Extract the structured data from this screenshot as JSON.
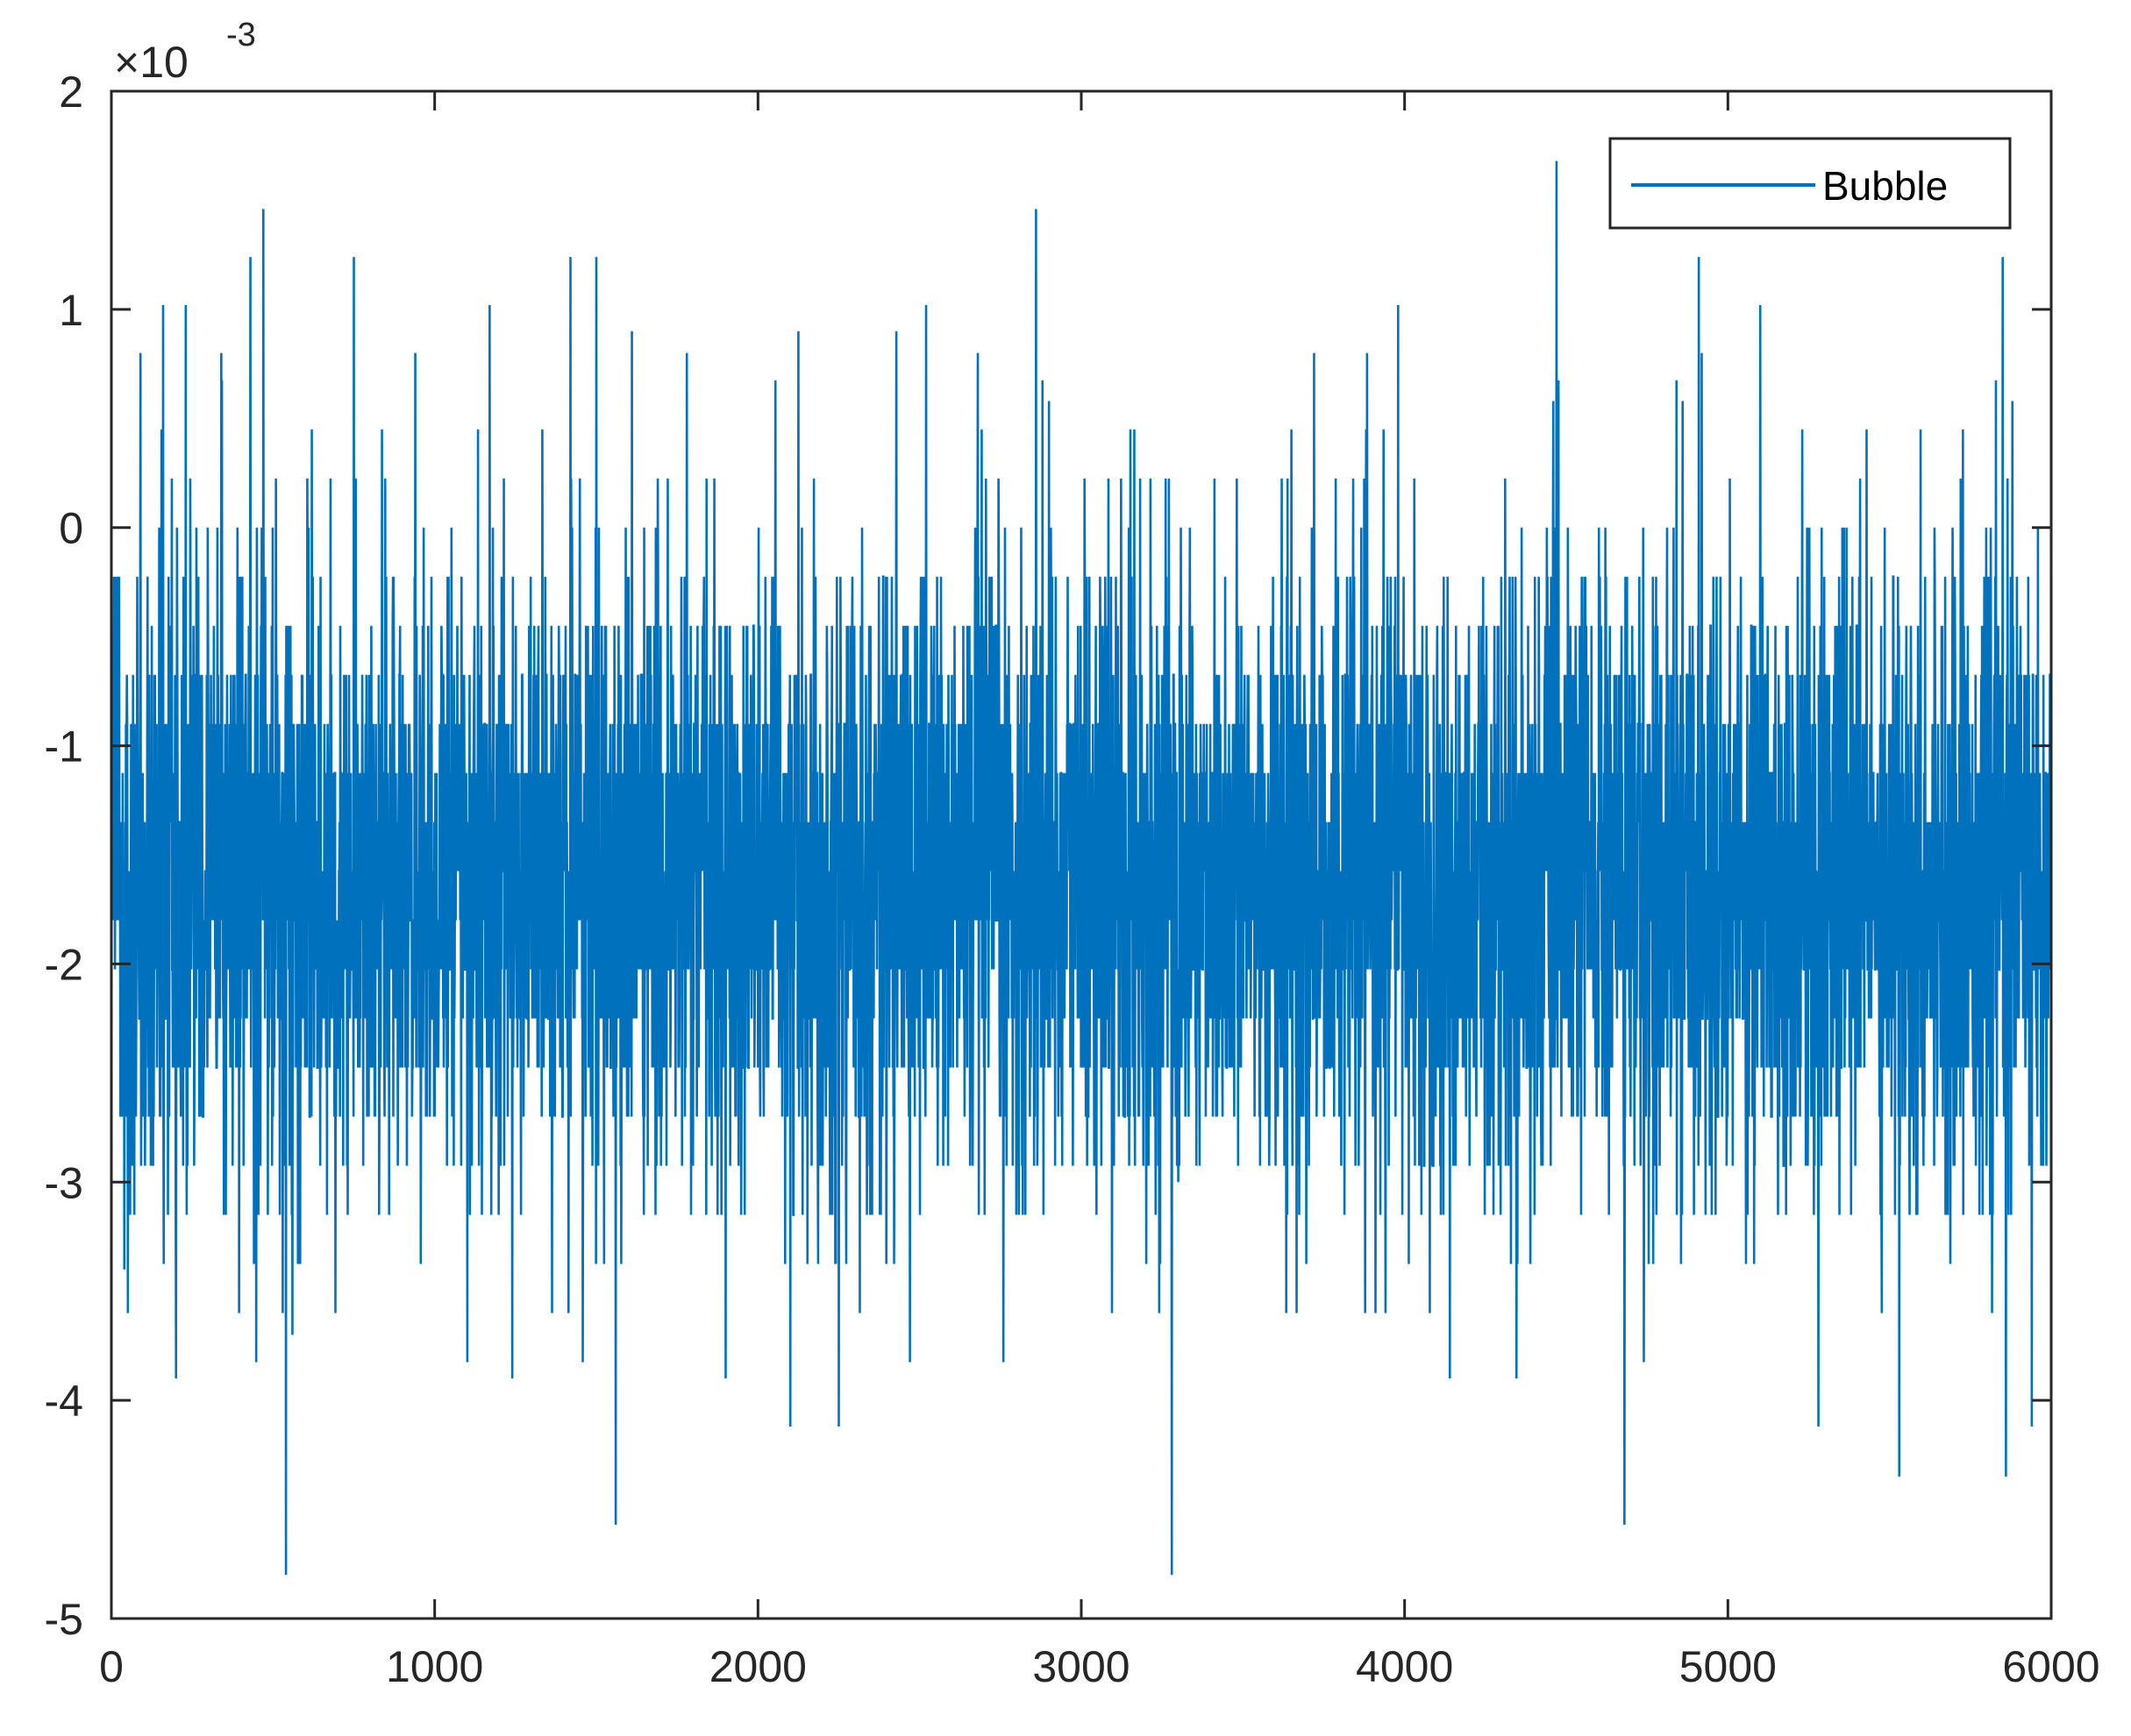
{
  "chart_data": {
    "type": "line",
    "title": "",
    "xlabel": "",
    "ylabel": "",
    "xlim": [
      0,
      6000
    ],
    "ylim": [
      -5,
      2
    ],
    "y_scale_exponent": {
      "prefix": "×10",
      "power": "-3"
    },
    "x_ticks": [
      {
        "value": 0,
        "label": "0"
      },
      {
        "value": 1000,
        "label": "1000"
      },
      {
        "value": 2000,
        "label": "2000"
      },
      {
        "value": 3000,
        "label": "3000"
      },
      {
        "value": 4000,
        "label": "4000"
      },
      {
        "value": 5000,
        "label": "5000"
      },
      {
        "value": 6000,
        "label": "6000"
      }
    ],
    "y_ticks": [
      {
        "value": 2,
        "label": "2"
      },
      {
        "value": 1,
        "label": "1"
      },
      {
        "value": 0,
        "label": "0"
      },
      {
        "value": -1,
        "label": "-1"
      },
      {
        "value": -2,
        "label": "-2"
      },
      {
        "value": -3,
        "label": "-3"
      },
      {
        "value": -4,
        "label": "-4"
      },
      {
        "value": -5,
        "label": "-5"
      }
    ],
    "grid": false,
    "legend": {
      "placement": "top-right"
    },
    "series": [
      {
        "name": "Bubble",
        "color": "#0072BD",
        "n_points": 6000,
        "mean": -1.6,
        "sample_step": 0.225,
        "typical_range": [
          -3.0,
          -0.2
        ],
        "x": [
          0,
          40,
          90,
          160,
          200,
          230,
          340,
          430,
          470,
          540,
          560,
          750,
          940,
          1170,
          1240,
          1420,
          1500,
          1560,
          1780,
          2100,
          2250,
          2520,
          2680,
          2860,
          2900,
          3280,
          3300,
          3720,
          3980,
          4140,
          4460,
          4470,
          4680,
          4860,
          4910,
          5100,
          5280,
          5530,
          5850,
          5860,
          5880,
          5940,
          6000
        ],
        "y": [
          -1.5,
          -3.4,
          0.8,
          1.02,
          -3.9,
          1.02,
          0.8,
          1.24,
          1.46,
          -4.8,
          -3.7,
          1.24,
          0.8,
          1.02,
          -3.9,
          1.24,
          1.24,
          -4.57,
          0.8,
          -4.12,
          -4.12,
          1.02,
          0.8,
          1.46,
          0.58,
          -4.8,
          -3.0,
          0.8,
          1.02,
          -3.9,
          0.58,
          1.68,
          -4.57,
          0.58,
          1.24,
          1.02,
          -4.12,
          -4.35,
          1.24,
          -4.35,
          0.58,
          -4.12,
          -1.5
        ]
      }
    ]
  }
}
